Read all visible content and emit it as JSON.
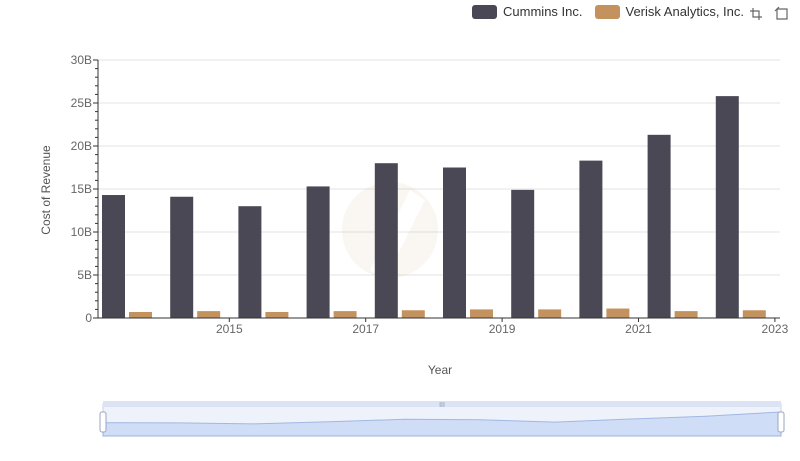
{
  "legend": [
    {
      "name": "Cummins Inc.",
      "color": "#4a4855"
    },
    {
      "name": "Verisk Analytics, Inc.",
      "color": "#c4925f"
    }
  ],
  "toolbox": [
    "zoom-icon",
    "restore-icon"
  ],
  "chart_data": {
    "type": "bar",
    "categories": [
      "2014",
      "2015",
      "2016",
      "2017",
      "2018",
      "2019",
      "2020",
      "2021",
      "2022",
      "2023"
    ],
    "x_tick_labels": [
      "2015",
      "2017",
      "2019",
      "2021",
      "2023"
    ],
    "series": [
      {
        "name": "Cummins Inc.",
        "color": "#4a4855",
        "values": [
          14.3,
          14.1,
          13.0,
          15.3,
          18.0,
          17.5,
          14.9,
          18.3,
          21.3,
          25.8
        ]
      },
      {
        "name": "Verisk Analytics, Inc.",
        "color": "#c4925f",
        "values": [
          0.7,
          0.8,
          0.7,
          0.8,
          0.9,
          1.0,
          1.0,
          1.1,
          0.8,
          0.9
        ]
      }
    ],
    "ylabel": "Cost of Revenue",
    "xlabel": "Year",
    "ylim": [
      0,
      30
    ],
    "y_ticks": [
      0,
      5,
      10,
      15,
      20,
      25,
      30
    ],
    "y_tick_labels": [
      "0",
      "5B",
      "10B",
      "15B",
      "20B",
      "25B",
      "30B"
    ],
    "grid": true,
    "legend_position": "top-right",
    "data_zoom": true
  }
}
